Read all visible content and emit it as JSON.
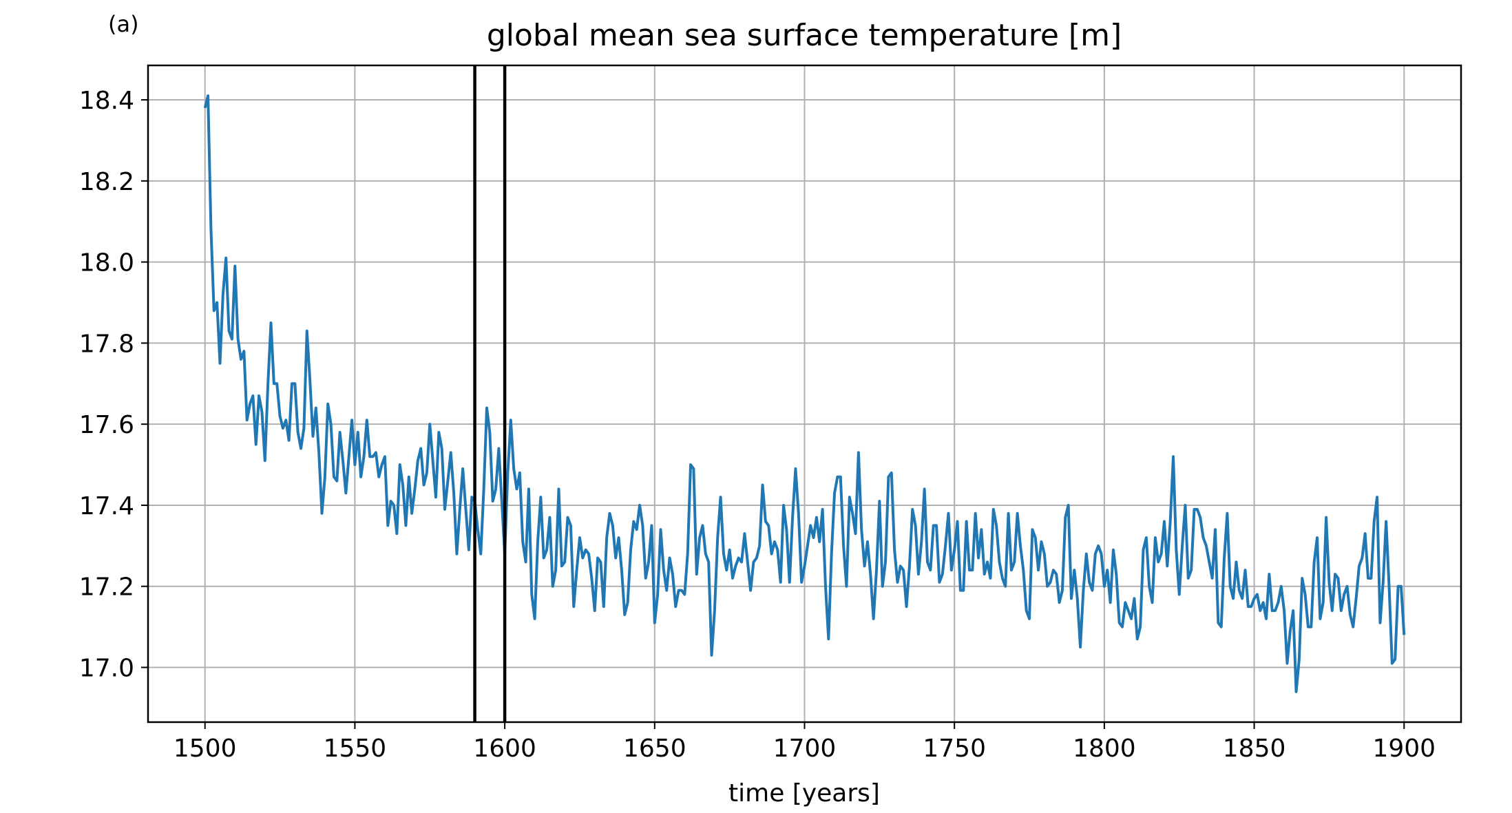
{
  "chart_data": {
    "type": "line",
    "panel_label": "(a)",
    "title": "global mean sea surface temperature [m]",
    "xlabel": "time [years]",
    "ylabel": "",
    "xlim": [
      1481,
      1919
    ],
    "ylim": [
      16.865,
      18.485
    ],
    "xticks": [
      1500,
      1550,
      1600,
      1650,
      1700,
      1750,
      1800,
      1850,
      1900
    ],
    "yticks": [
      17.0,
      17.2,
      17.4,
      17.6,
      17.8,
      18.0,
      18.2,
      18.4
    ],
    "ytick_labels": [
      "17.0",
      "17.2",
      "17.4",
      "17.6",
      "17.8",
      "18.0",
      "18.2",
      "18.4"
    ],
    "grid": true,
    "colors": {
      "series": "#1f77b4",
      "vlines": "#000000",
      "grid": "#b0b0b0"
    },
    "vlines": [
      1590,
      1600
    ],
    "series": [
      {
        "x_start": 1500,
        "x_step": 1,
        "values": [
          18.38,
          18.41,
          18.08,
          17.88,
          17.9,
          17.75,
          17.92,
          18.01,
          17.83,
          17.81,
          17.99,
          17.81,
          17.76,
          17.78,
          17.61,
          17.65,
          17.67,
          17.55,
          17.67,
          17.63,
          17.51,
          17.7,
          17.85,
          17.7,
          17.7,
          17.62,
          17.59,
          17.61,
          17.56,
          17.7,
          17.7,
          17.58,
          17.54,
          17.59,
          17.83,
          17.71,
          17.57,
          17.64,
          17.53,
          17.38,
          17.47,
          17.65,
          17.6,
          17.47,
          17.46,
          17.58,
          17.51,
          17.43,
          17.52,
          17.61,
          17.5,
          17.58,
          17.47,
          17.52,
          17.61,
          17.52,
          17.52,
          17.53,
          17.47,
          17.5,
          17.52,
          17.35,
          17.41,
          17.4,
          17.33,
          17.5,
          17.45,
          17.35,
          17.47,
          17.38,
          17.44,
          17.51,
          17.54,
          17.45,
          17.48,
          17.6,
          17.51,
          17.42,
          17.58,
          17.54,
          17.39,
          17.46,
          17.53,
          17.43,
          17.28,
          17.39,
          17.49,
          17.39,
          17.29,
          17.42,
          17.41,
          17.34,
          17.28,
          17.44,
          17.64,
          17.58,
          17.41,
          17.44,
          17.54,
          17.41,
          17.28,
          17.48,
          17.61,
          17.49,
          17.44,
          17.48,
          17.31,
          17.26,
          17.44,
          17.18,
          17.12,
          17.31,
          17.42,
          17.27,
          17.29,
          17.37,
          17.2,
          17.24,
          17.44,
          17.25,
          17.26,
          17.37,
          17.35,
          17.15,
          17.24,
          17.32,
          17.27,
          17.29,
          17.28,
          17.22,
          17.14,
          17.27,
          17.26,
          17.15,
          17.32,
          17.38,
          17.35,
          17.27,
          17.32,
          17.24,
          17.13,
          17.16,
          17.29,
          17.36,
          17.34,
          17.4,
          17.35,
          17.22,
          17.26,
          17.35,
          17.11,
          17.18,
          17.34,
          17.24,
          17.19,
          17.27,
          17.23,
          17.15,
          17.19,
          17.19,
          17.18,
          17.28,
          17.5,
          17.49,
          17.23,
          17.32,
          17.35,
          17.28,
          17.26,
          17.03,
          17.14,
          17.32,
          17.42,
          17.28,
          17.24,
          17.29,
          17.22,
          17.25,
          17.27,
          17.26,
          17.33,
          17.26,
          17.19,
          17.26,
          17.27,
          17.3,
          17.45,
          17.36,
          17.35,
          17.28,
          17.31,
          17.29,
          17.21,
          17.4,
          17.34,
          17.21,
          17.37,
          17.49,
          17.38,
          17.21,
          17.25,
          17.3,
          17.35,
          17.32,
          17.37,
          17.31,
          17.39,
          17.2,
          17.07,
          17.28,
          17.43,
          17.47,
          17.47,
          17.3,
          17.2,
          17.42,
          17.38,
          17.33,
          17.53,
          17.34,
          17.25,
          17.31,
          17.23,
          17.12,
          17.24,
          17.41,
          17.2,
          17.26,
          17.47,
          17.48,
          17.29,
          17.21,
          17.25,
          17.24,
          17.15,
          17.25,
          17.39,
          17.35,
          17.23,
          17.31,
          17.44,
          17.26,
          17.24,
          17.35,
          17.35,
          17.21,
          17.23,
          17.3,
          17.38,
          17.24,
          17.29,
          17.36,
          17.19,
          17.19,
          17.36,
          17.24,
          17.24,
          17.38,
          17.27,
          17.34,
          17.23,
          17.26,
          17.22,
          17.39,
          17.35,
          17.26,
          17.22,
          17.2,
          17.38,
          17.24,
          17.26,
          17.38,
          17.3,
          17.24,
          17.14,
          17.12,
          17.34,
          17.32,
          17.24,
          17.31,
          17.28,
          17.2,
          17.21,
          17.24,
          17.23,
          17.16,
          17.19,
          17.37,
          17.4,
          17.17,
          17.24,
          17.17,
          17.05,
          17.19,
          17.28,
          17.21,
          17.19,
          17.28,
          17.3,
          17.28,
          17.2,
          17.24,
          17.16,
          17.29,
          17.23,
          17.11,
          17.1,
          17.16,
          17.14,
          17.12,
          17.17,
          17.07,
          17.1,
          17.29,
          17.32,
          17.2,
          17.16,
          17.32,
          17.26,
          17.28,
          17.36,
          17.25,
          17.36,
          17.52,
          17.29,
          17.18,
          17.3,
          17.4,
          17.22,
          17.24,
          17.39,
          17.39,
          17.37,
          17.32,
          17.3,
          17.26,
          17.22,
          17.34,
          17.11,
          17.1,
          17.27,
          17.38,
          17.2,
          17.17,
          17.26,
          17.19,
          17.17,
          17.24,
          17.15,
          17.15,
          17.17,
          17.18,
          17.14,
          17.16,
          17.12,
          17.23,
          17.14,
          17.14,
          17.16,
          17.2,
          17.14,
          17.01,
          17.09,
          17.14,
          16.94,
          17.02,
          17.22,
          17.18,
          17.1,
          17.1,
          17.26,
          17.32,
          17.12,
          17.16,
          17.37,
          17.21,
          17.14,
          17.23,
          17.22,
          17.14,
          17.18,
          17.2,
          17.13,
          17.1,
          17.17,
          17.25,
          17.27,
          17.33,
          17.22,
          17.22,
          17.36,
          17.42,
          17.11,
          17.21,
          17.36,
          17.2,
          17.01,
          17.02,
          17.2,
          17.2,
          17.08
        ]
      }
    ]
  }
}
